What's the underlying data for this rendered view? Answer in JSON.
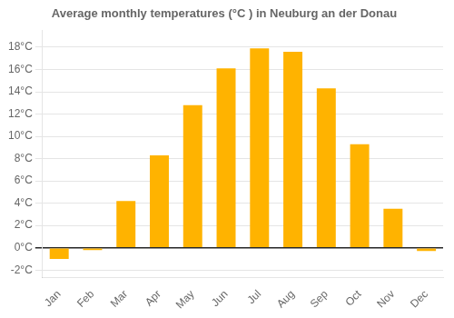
{
  "chart_data": {
    "type": "bar",
    "title": "Average monthly temperatures (°C ) in Neuburg an der Donau",
    "categories": [
      "Jan",
      "Feb",
      "Mar",
      "Apr",
      "May",
      "Jun",
      "Jul",
      "Aug",
      "Sep",
      "Oct",
      "Nov",
      "Dec"
    ],
    "values": [
      -1.0,
      -0.2,
      4.2,
      8.3,
      12.8,
      16.1,
      17.9,
      17.6,
      14.3,
      9.3,
      3.5,
      -0.3
    ],
    "color": "#FFB300",
    "ylim": [
      -2.7,
      19.5
    ],
    "yticks": [
      {
        "value": -2,
        "label": "-2°C"
      },
      {
        "value": 0,
        "label": "0°C"
      },
      {
        "value": 2,
        "label": "2°C"
      },
      {
        "value": 4,
        "label": "4°C"
      },
      {
        "value": 6,
        "label": "6°C"
      },
      {
        "value": 8,
        "label": "8°C"
      },
      {
        "value": 10,
        "label": "10°C"
      },
      {
        "value": 12,
        "label": "12°C"
      },
      {
        "value": 14,
        "label": "14°C"
      },
      {
        "value": 16,
        "label": "16°C"
      },
      {
        "value": 18,
        "label": "18°C"
      }
    ],
    "grid": true
  }
}
